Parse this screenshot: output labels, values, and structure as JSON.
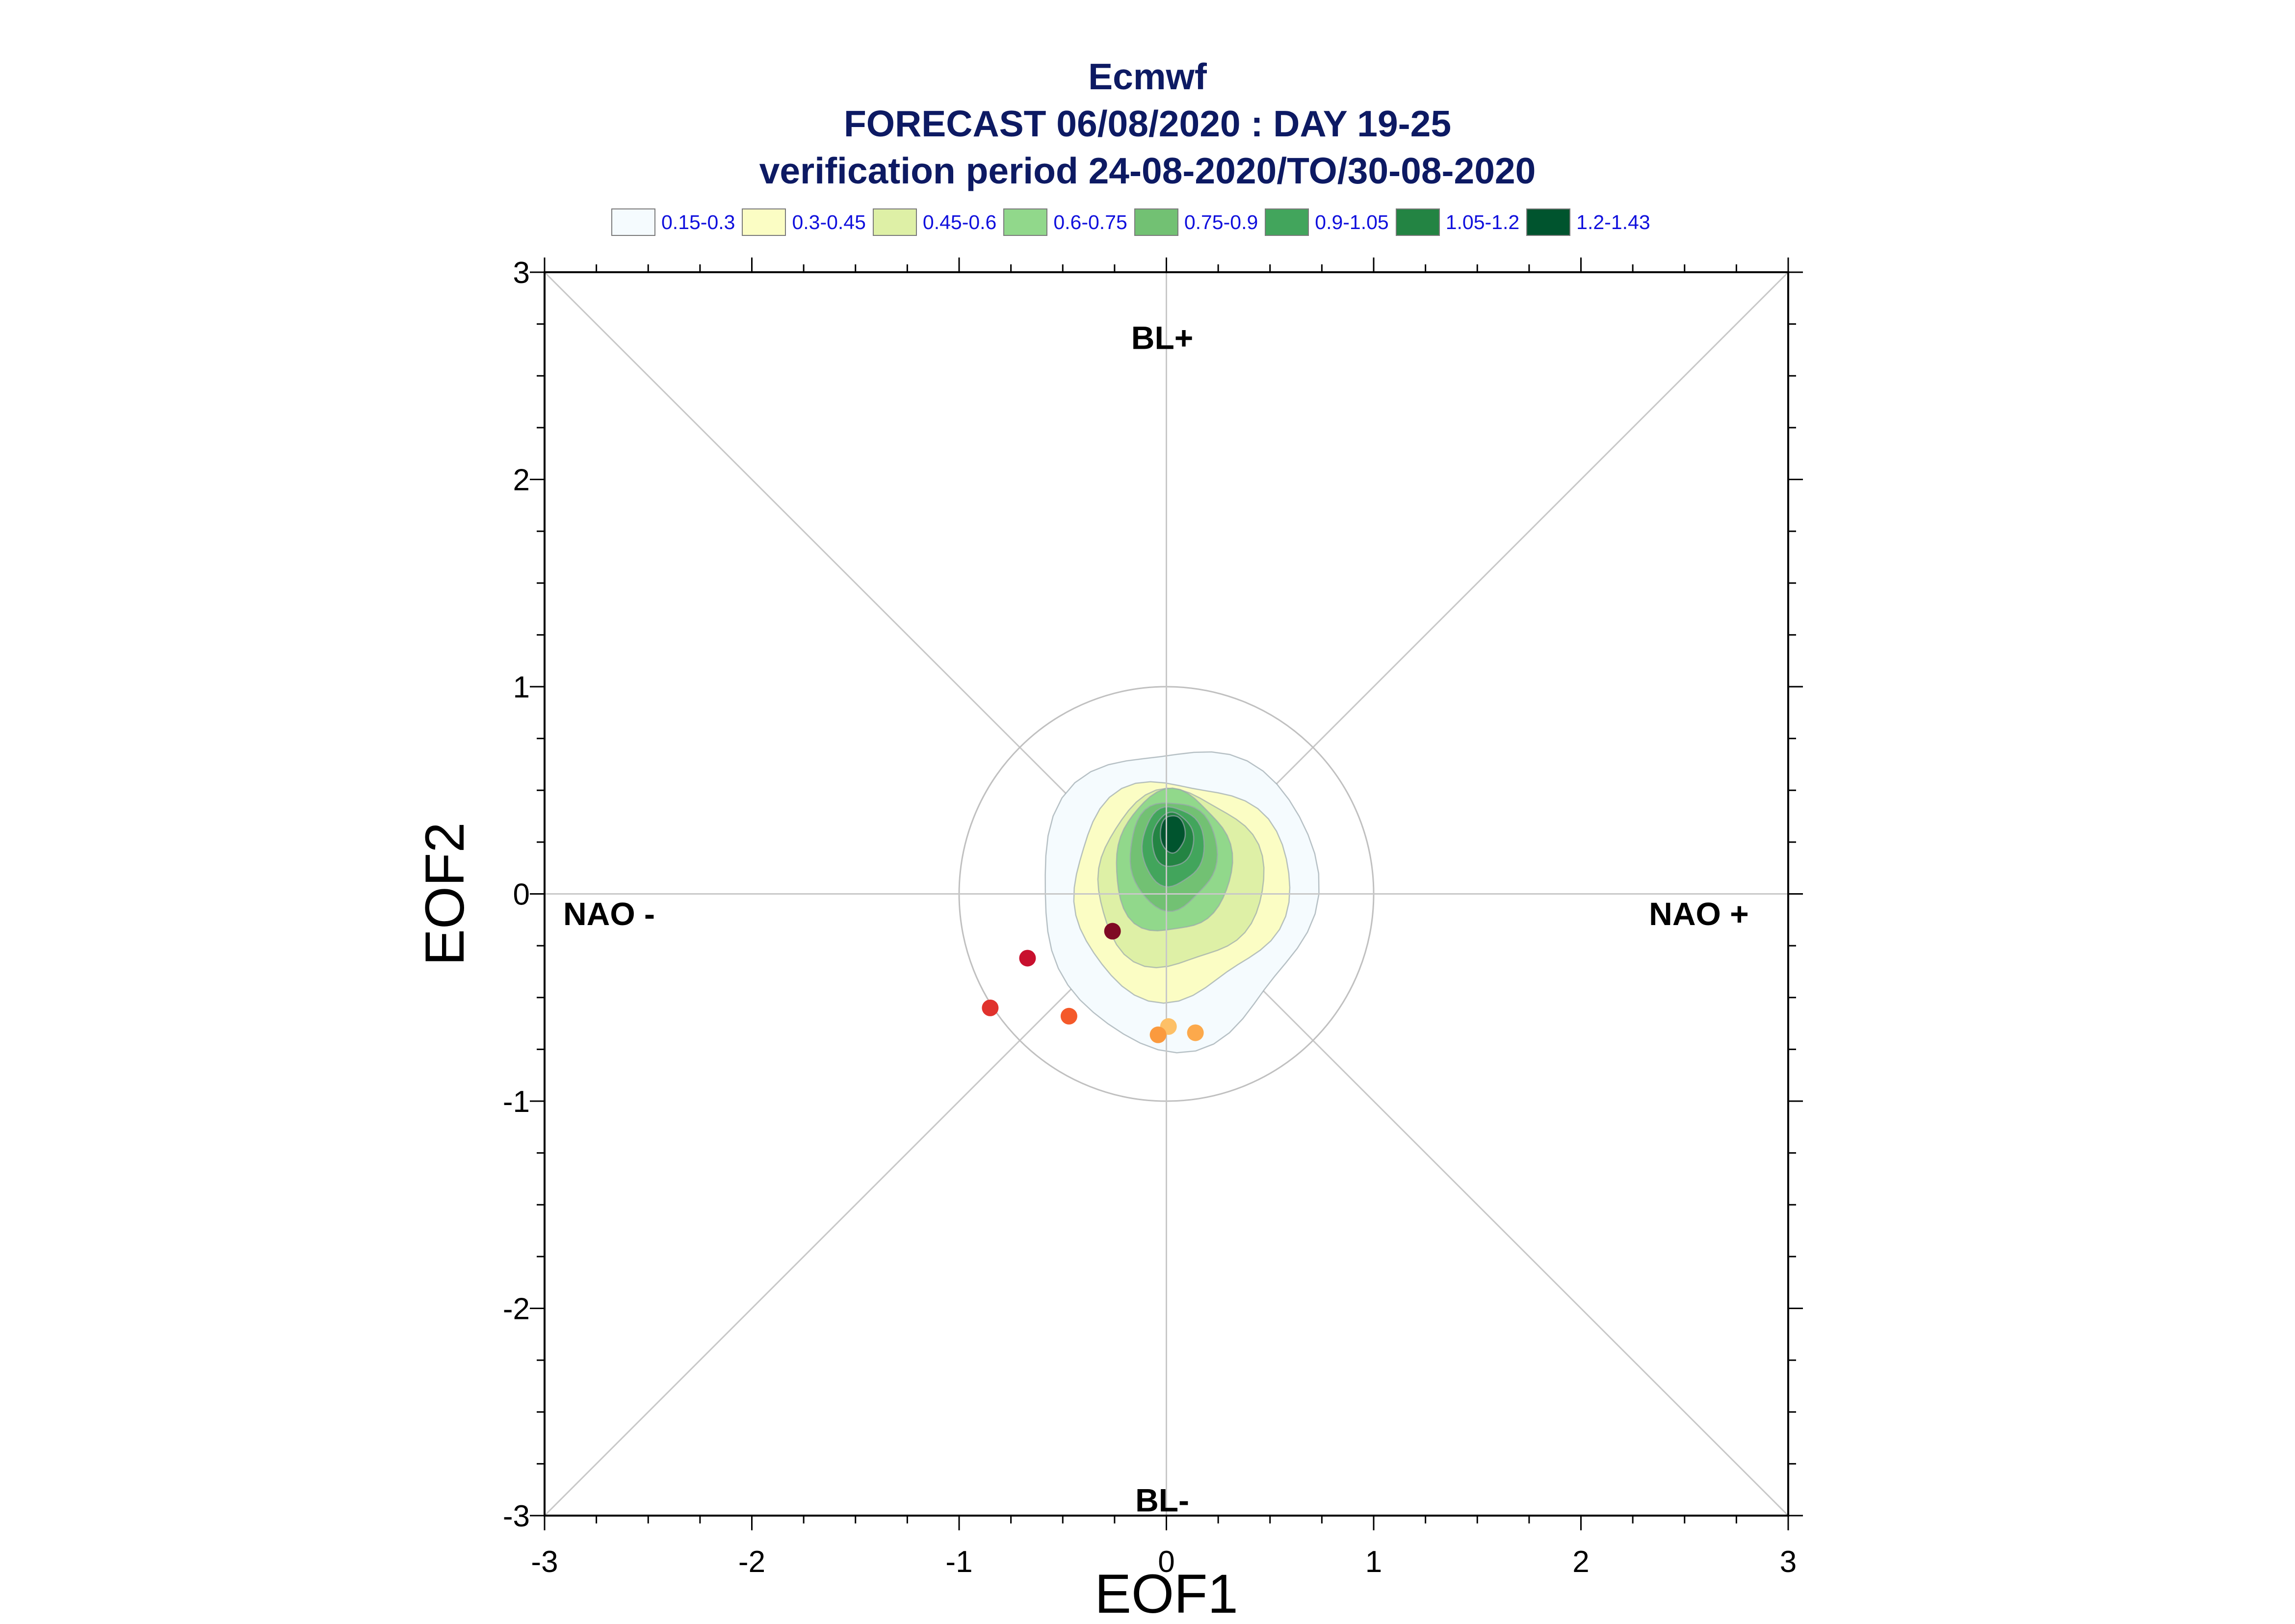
{
  "title_lines": [
    "Ecmwf",
    "FORECAST 06/08/2020 : DAY 19-25",
    "verification period 24-08-2020/TO/30-08-2020"
  ],
  "legend": [
    {
      "label": "0.15-0.3",
      "color": "#f5fbfe"
    },
    {
      "label": "0.3-0.45",
      "color": "#fbfdc4"
    },
    {
      "label": "0.45-0.6",
      "color": "#def0a6"
    },
    {
      "label": "0.6-0.75",
      "color": "#91d88b"
    },
    {
      "label": "0.75-0.9",
      "color": "#72c173"
    },
    {
      "label": "0.9-1.05",
      "color": "#42a55c"
    },
    {
      "label": "1.05-1.2",
      "color": "#238443"
    },
    {
      "label": "1.2-1.43",
      "color": "#00542e"
    }
  ],
  "chart_data": {
    "type": "scatter",
    "xlabel": "EOF1",
    "ylabel": "EOF2",
    "xlim": [
      -3,
      3
    ],
    "ylim": [
      -3,
      3
    ],
    "xticks": [
      "-3",
      "-2",
      "-1",
      "0",
      "1",
      "2",
      "3"
    ],
    "yticks": [
      "-3",
      "-2",
      "-1",
      "0",
      "1",
      "2",
      "3"
    ],
    "regime_labels": {
      "top": "BL+",
      "bottom": "BL-",
      "left": "NAO -",
      "right": "NAO +"
    },
    "reference_circle_radius": 1.0,
    "density_peak": {
      "x": 0.03,
      "y": 0.29,
      "max": 1.43
    },
    "points": [
      {
        "x": -0.26,
        "y": -0.18,
        "color": "#7f0a24"
      },
      {
        "x": -0.67,
        "y": -0.31,
        "color": "#c8102e"
      },
      {
        "x": -0.85,
        "y": -0.55,
        "color": "#e0322d"
      },
      {
        "x": -0.47,
        "y": -0.59,
        "color": "#f4592a"
      },
      {
        "x": 0.01,
        "y": -0.64,
        "color": "#fdc067"
      },
      {
        "x": -0.04,
        "y": -0.68,
        "color": "#fb9a3e"
      },
      {
        "x": 0.14,
        "y": -0.67,
        "color": "#fca94c"
      }
    ]
  }
}
